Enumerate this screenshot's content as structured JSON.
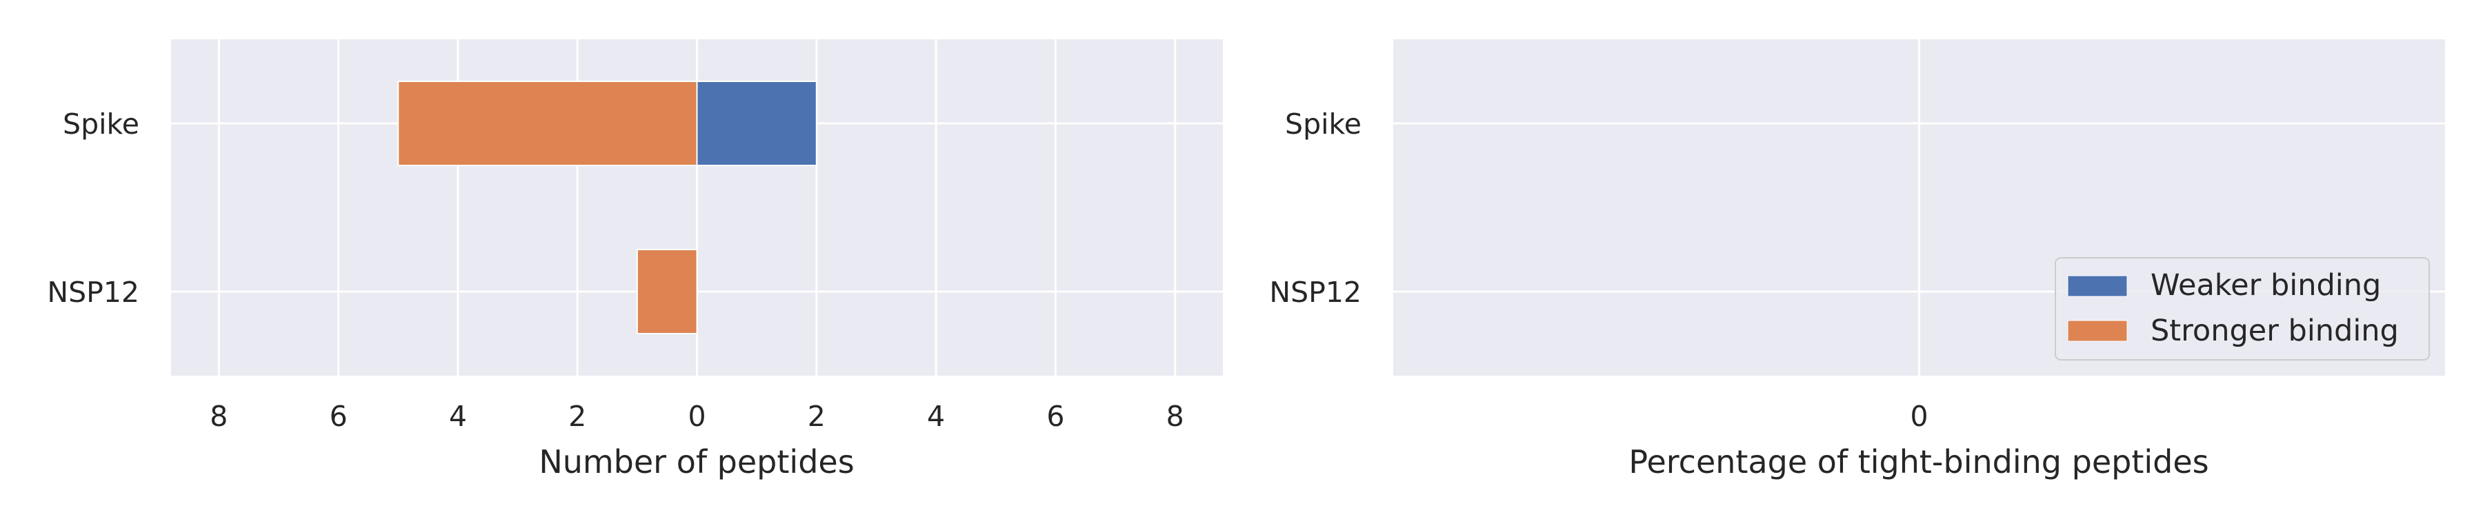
{
  "colors": {
    "weaker": "#4c72b0",
    "stronger": "#dd8452",
    "plot_bg": "#eaeaf2",
    "grid": "#ffffff",
    "text": "#262626"
  },
  "chart_data": [
    {
      "type": "bar",
      "orientation": "horizontal",
      "layout": "mirrored",
      "categories": [
        "Spike",
        "NSP12"
      ],
      "series": [
        {
          "name": "Weaker binding",
          "color": "#4c72b0",
          "direction": "right",
          "values": [
            2,
            0
          ]
        },
        {
          "name": "Stronger binding",
          "color": "#dd8452",
          "direction": "left",
          "values": [
            5,
            1
          ]
        }
      ],
      "xlabel": "Number of peptides",
      "xticks": [
        8,
        6,
        4,
        2,
        0,
        2,
        4,
        6,
        8
      ],
      "xlim": [
        -8.8,
        8.8
      ],
      "grid": true
    },
    {
      "type": "bar",
      "orientation": "horizontal",
      "categories": [
        "Spike",
        "NSP12"
      ],
      "series": [
        {
          "name": "Weaker binding",
          "color": "#4c72b0",
          "values": [
            0,
            0
          ]
        },
        {
          "name": "Stronger binding",
          "color": "#dd8452",
          "values": [
            0,
            0
          ]
        }
      ],
      "xlabel": "Percentage of tight-binding peptides",
      "xticks": [
        0
      ],
      "xlim": [
        -1,
        1
      ],
      "grid": true,
      "legend": {
        "placement": "lower-right",
        "entries": [
          "Weaker binding",
          "Stronger binding"
        ]
      }
    }
  ]
}
